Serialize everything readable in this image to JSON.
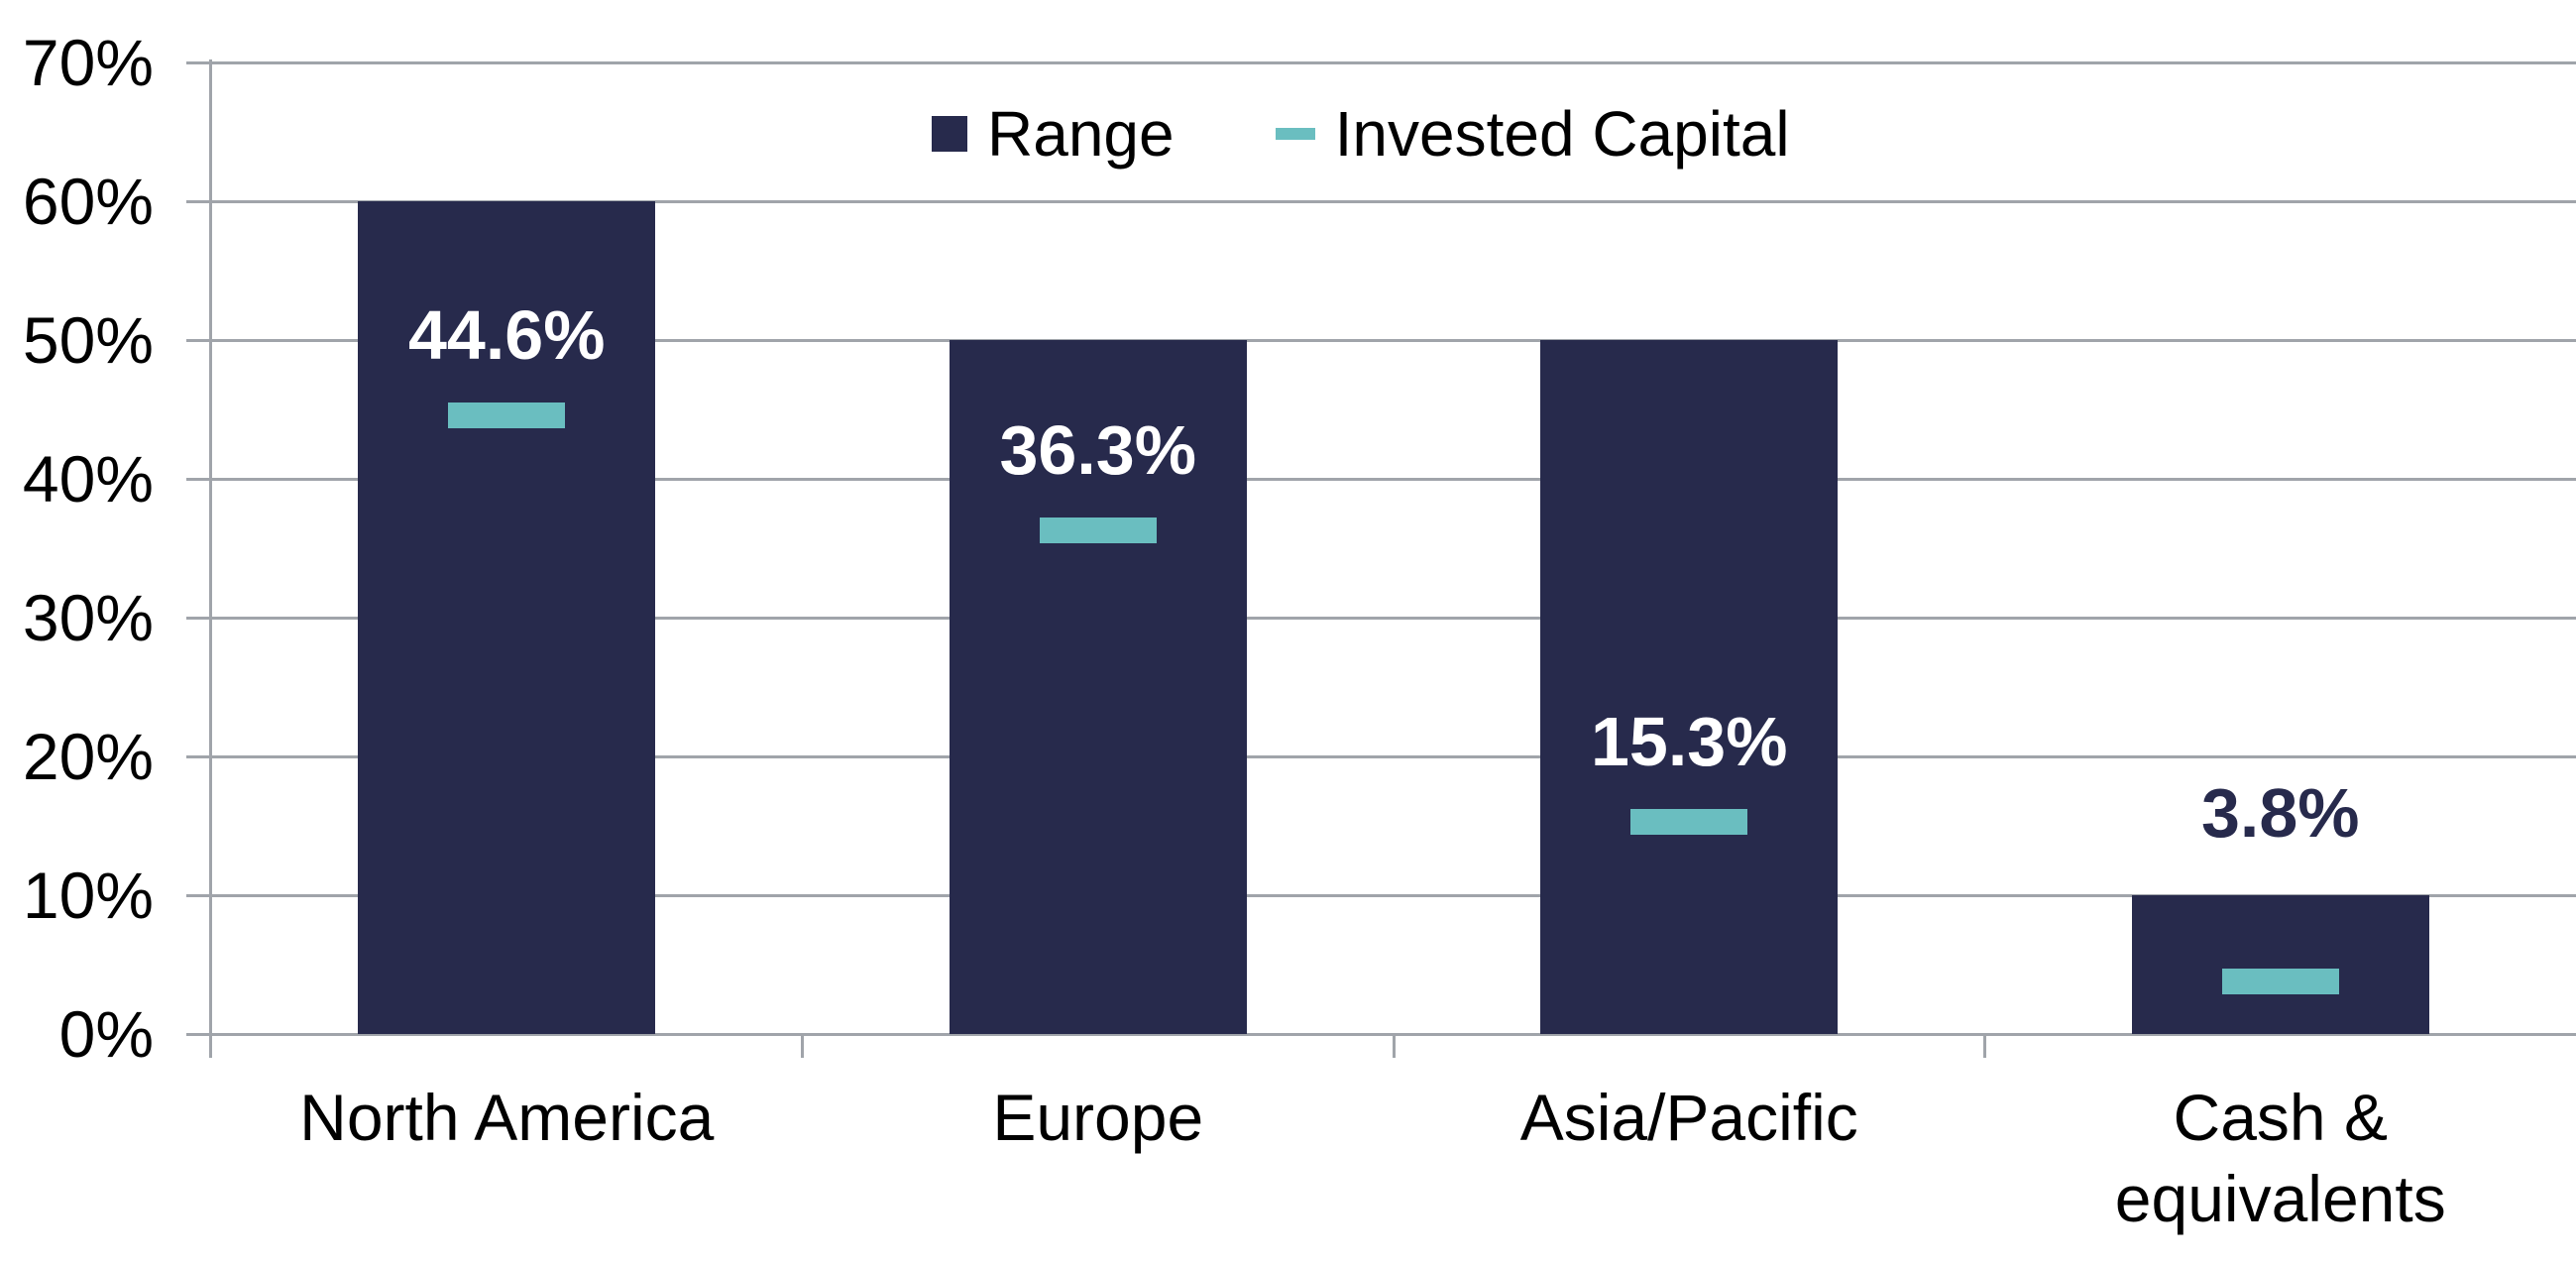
{
  "legend": {
    "range_label": "Range",
    "invested_label": "Invested Capital"
  },
  "chart_data": {
    "type": "bar",
    "title": "",
    "categories": [
      "North America",
      "Europe",
      "Asia/Pacific",
      "Cash & equivalents"
    ],
    "category_lines": [
      [
        "North America"
      ],
      [
        "Europe"
      ],
      [
        "Asia/Pacific"
      ],
      [
        "Cash &",
        "equivalents"
      ]
    ],
    "series": [
      {
        "name": "Range",
        "type": "bar",
        "values": [
          60,
          50,
          50,
          10
        ]
      },
      {
        "name": "Invested Capital",
        "type": "dash-marker",
        "values": [
          44.6,
          36.3,
          15.3,
          3.8
        ],
        "labels": [
          "44.6%",
          "36.3%",
          "15.3%",
          "3.8%"
        ]
      }
    ],
    "y_axis": {
      "tick_labels": [
        "0%",
        "10%",
        "20%",
        "30%",
        "40%",
        "50%",
        "60%",
        "70%"
      ],
      "tick_values": [
        0,
        10,
        20,
        30,
        40,
        50,
        60,
        70
      ],
      "min": 0,
      "max": 70,
      "grid": true
    },
    "x_axis": {
      "label": ""
    },
    "legend_position": "top-center",
    "colors": {
      "bar": "#272A4C",
      "marker": "#6ABEC0",
      "gridline": "#A0A4AA",
      "label_on_bar": "#FFFFFF",
      "label_outside_bar": "#272A4C",
      "text": "#000000",
      "background": "#FFFFFF"
    }
  }
}
